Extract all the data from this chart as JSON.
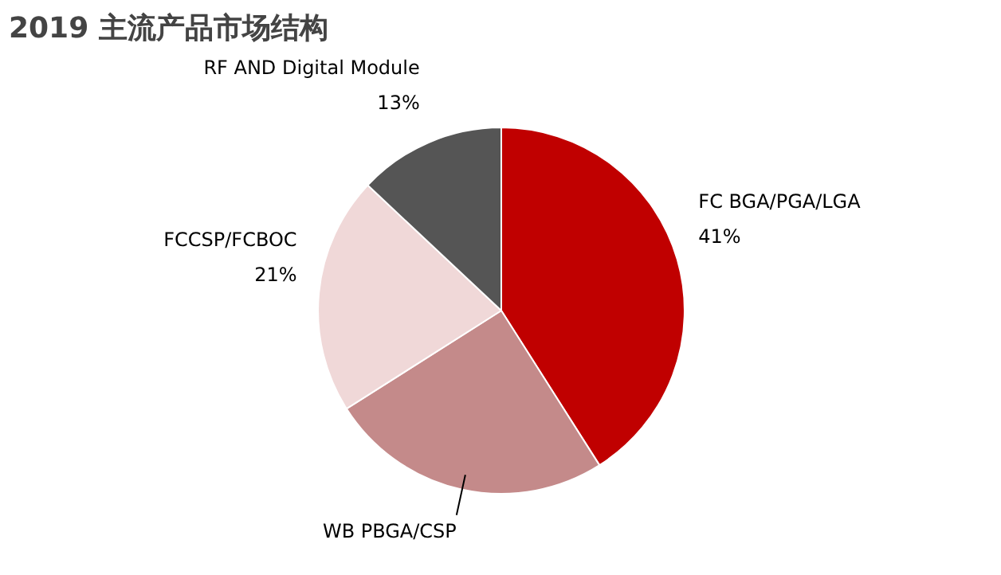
{
  "chart_data": {
    "type": "pie",
    "title": "2019 主流产品市场结构",
    "categories": [
      "FC BGA/PGA/LGA",
      "WB PBGA/CSP",
      "FCCSP/FCBOC",
      "RF AND Digital Module"
    ],
    "values": [
      41,
      25,
      21,
      13
    ],
    "colors": [
      "#c00000",
      "#c48a8a",
      "#f0d8d8",
      "#555555"
    ],
    "value_labels": [
      "41%",
      null,
      "21%",
      "13%"
    ]
  }
}
